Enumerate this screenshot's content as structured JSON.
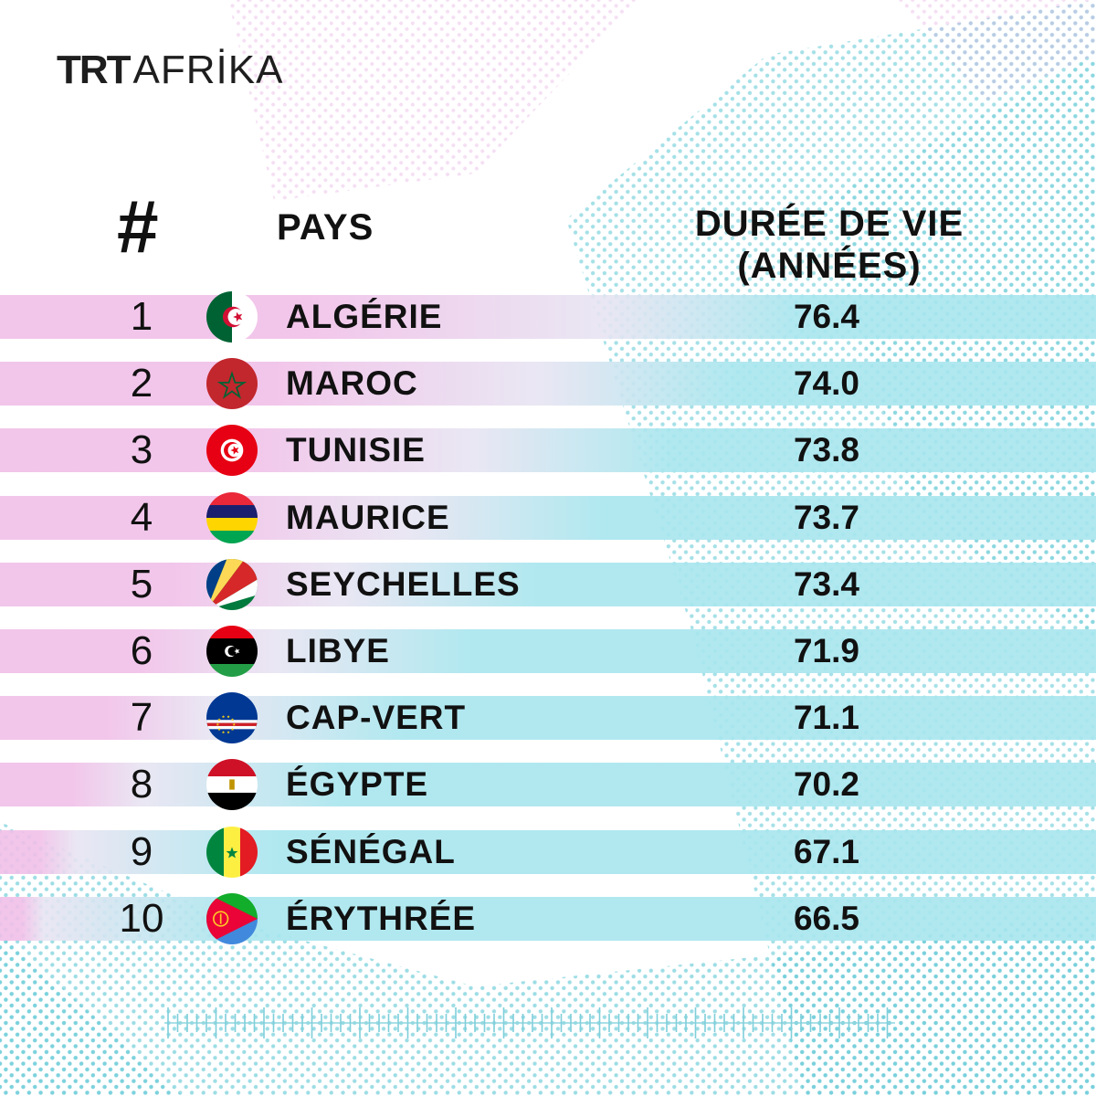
{
  "brand": {
    "trt": "TRT",
    "afrika": "AFRİKA"
  },
  "header": {
    "rank": "#",
    "country": "PAYS",
    "value_line1": "DURÉE DE VIE",
    "value_line2": "(ANNÉES)"
  },
  "colors": {
    "pink": "#f1bfe8",
    "cyan": "#a8e6ee",
    "dots": "#62c9d6",
    "pink_dots": "#e7a6df"
  },
  "chart_data": {
    "type": "table",
    "columns": [
      "#",
      "PAYS",
      "DURÉE DE VIE (ANNÉES)"
    ],
    "rows": [
      {
        "rank": "1",
        "country": "ALGÉRIE",
        "value": "76.4",
        "flag": "algeria-flag-icon"
      },
      {
        "rank": "2",
        "country": "MAROC",
        "value": "74.0",
        "flag": "morocco-flag-icon"
      },
      {
        "rank": "3",
        "country": "TUNISIE",
        "value": "73.8",
        "flag": "tunisia-flag-icon"
      },
      {
        "rank": "4",
        "country": "MAURICE",
        "value": "73.7",
        "flag": "mauritius-flag-icon"
      },
      {
        "rank": "5",
        "country": "SEYCHELLES",
        "value": "73.4",
        "flag": "seychelles-flag-icon"
      },
      {
        "rank": "6",
        "country": "LIBYE",
        "value": "71.9",
        "flag": "libya-flag-icon"
      },
      {
        "rank": "7",
        "country": "CAP-VERT",
        "value": "71.1",
        "flag": "cape-verde-flag-icon"
      },
      {
        "rank": "8",
        "country": "ÉGYPTE",
        "value": "70.2",
        "flag": "egypt-flag-icon"
      },
      {
        "rank": "9",
        "country": "SÉNÉGAL",
        "value": "67.1",
        "flag": "senegal-flag-icon"
      },
      {
        "rank": "10",
        "country": "ÉRYTHRÉE",
        "value": "66.5",
        "flag": "eritrea-flag-icon"
      }
    ]
  }
}
